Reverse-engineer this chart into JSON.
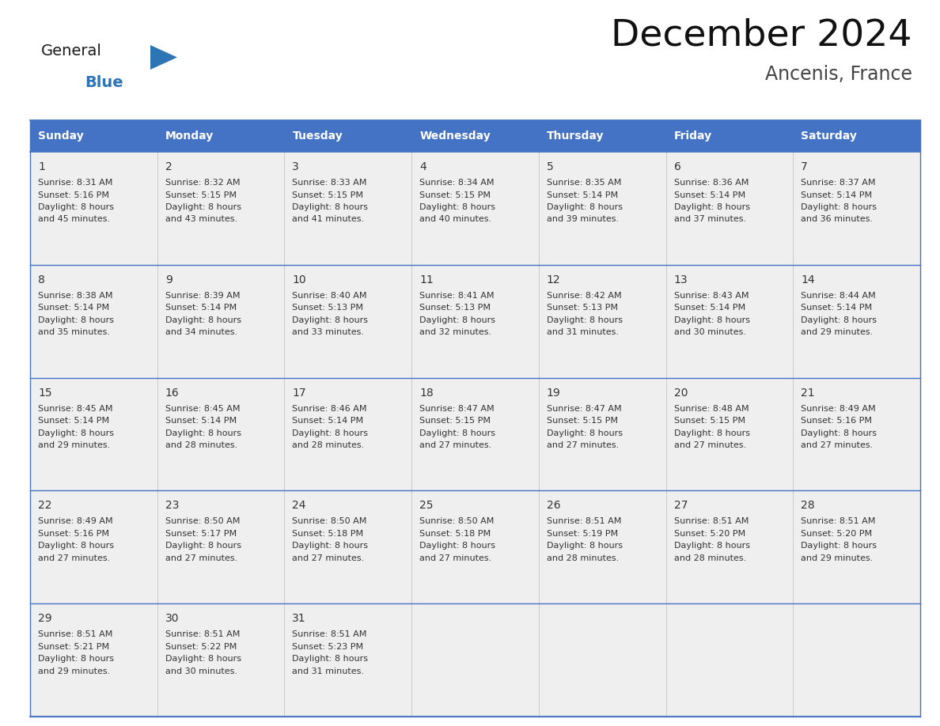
{
  "title": "December 2024",
  "subtitle": "Ancenis, France",
  "header_bg": "#4472C4",
  "header_text_color": "#FFFFFF",
  "day_names": [
    "Sunday",
    "Monday",
    "Tuesday",
    "Wednesday",
    "Thursday",
    "Friday",
    "Saturday"
  ],
  "cell_bg": "#EFEFEF",
  "cell_text_color": "#333333",
  "line_color": "#4472C4",
  "bg_color": "#FFFFFF",
  "logo_general_color": "#1A1A1A",
  "logo_blue_color": "#2E75B6",
  "weeks": [
    [
      {
        "day": 1,
        "sunrise": "8:31 AM",
        "sunset": "5:16 PM",
        "dl_min": "45"
      },
      {
        "day": 2,
        "sunrise": "8:32 AM",
        "sunset": "5:15 PM",
        "dl_min": "43"
      },
      {
        "day": 3,
        "sunrise": "8:33 AM",
        "sunset": "5:15 PM",
        "dl_min": "41"
      },
      {
        "day": 4,
        "sunrise": "8:34 AM",
        "sunset": "5:15 PM",
        "dl_min": "40"
      },
      {
        "day": 5,
        "sunrise": "8:35 AM",
        "sunset": "5:14 PM",
        "dl_min": "39"
      },
      {
        "day": 6,
        "sunrise": "8:36 AM",
        "sunset": "5:14 PM",
        "dl_min": "37"
      },
      {
        "day": 7,
        "sunrise": "8:37 AM",
        "sunset": "5:14 PM",
        "dl_min": "36"
      }
    ],
    [
      {
        "day": 8,
        "sunrise": "8:38 AM",
        "sunset": "5:14 PM",
        "dl_min": "35"
      },
      {
        "day": 9,
        "sunrise": "8:39 AM",
        "sunset": "5:14 PM",
        "dl_min": "34"
      },
      {
        "day": 10,
        "sunrise": "8:40 AM",
        "sunset": "5:13 PM",
        "dl_min": "33"
      },
      {
        "day": 11,
        "sunrise": "8:41 AM",
        "sunset": "5:13 PM",
        "dl_min": "32"
      },
      {
        "day": 12,
        "sunrise": "8:42 AM",
        "sunset": "5:13 PM",
        "dl_min": "31"
      },
      {
        "day": 13,
        "sunrise": "8:43 AM",
        "sunset": "5:14 PM",
        "dl_min": "30"
      },
      {
        "day": 14,
        "sunrise": "8:44 AM",
        "sunset": "5:14 PM",
        "dl_min": "29"
      }
    ],
    [
      {
        "day": 15,
        "sunrise": "8:45 AM",
        "sunset": "5:14 PM",
        "dl_min": "29"
      },
      {
        "day": 16,
        "sunrise": "8:45 AM",
        "sunset": "5:14 PM",
        "dl_min": "28"
      },
      {
        "day": 17,
        "sunrise": "8:46 AM",
        "sunset": "5:14 PM",
        "dl_min": "28"
      },
      {
        "day": 18,
        "sunrise": "8:47 AM",
        "sunset": "5:15 PM",
        "dl_min": "27"
      },
      {
        "day": 19,
        "sunrise": "8:47 AM",
        "sunset": "5:15 PM",
        "dl_min": "27"
      },
      {
        "day": 20,
        "sunrise": "8:48 AM",
        "sunset": "5:15 PM",
        "dl_min": "27"
      },
      {
        "day": 21,
        "sunrise": "8:49 AM",
        "sunset": "5:16 PM",
        "dl_min": "27"
      }
    ],
    [
      {
        "day": 22,
        "sunrise": "8:49 AM",
        "sunset": "5:16 PM",
        "dl_min": "27"
      },
      {
        "day": 23,
        "sunrise": "8:50 AM",
        "sunset": "5:17 PM",
        "dl_min": "27"
      },
      {
        "day": 24,
        "sunrise": "8:50 AM",
        "sunset": "5:18 PM",
        "dl_min": "27"
      },
      {
        "day": 25,
        "sunrise": "8:50 AM",
        "sunset": "5:18 PM",
        "dl_min": "27"
      },
      {
        "day": 26,
        "sunrise": "8:51 AM",
        "sunset": "5:19 PM",
        "dl_min": "28"
      },
      {
        "day": 27,
        "sunrise": "8:51 AM",
        "sunset": "5:20 PM",
        "dl_min": "28"
      },
      {
        "day": 28,
        "sunrise": "8:51 AM",
        "sunset": "5:20 PM",
        "dl_min": "29"
      }
    ],
    [
      {
        "day": 29,
        "sunrise": "8:51 AM",
        "sunset": "5:21 PM",
        "dl_min": "29"
      },
      {
        "day": 30,
        "sunrise": "8:51 AM",
        "sunset": "5:22 PM",
        "dl_min": "30"
      },
      {
        "day": 31,
        "sunrise": "8:51 AM",
        "sunset": "5:23 PM",
        "dl_min": "31"
      },
      null,
      null,
      null,
      null
    ]
  ]
}
